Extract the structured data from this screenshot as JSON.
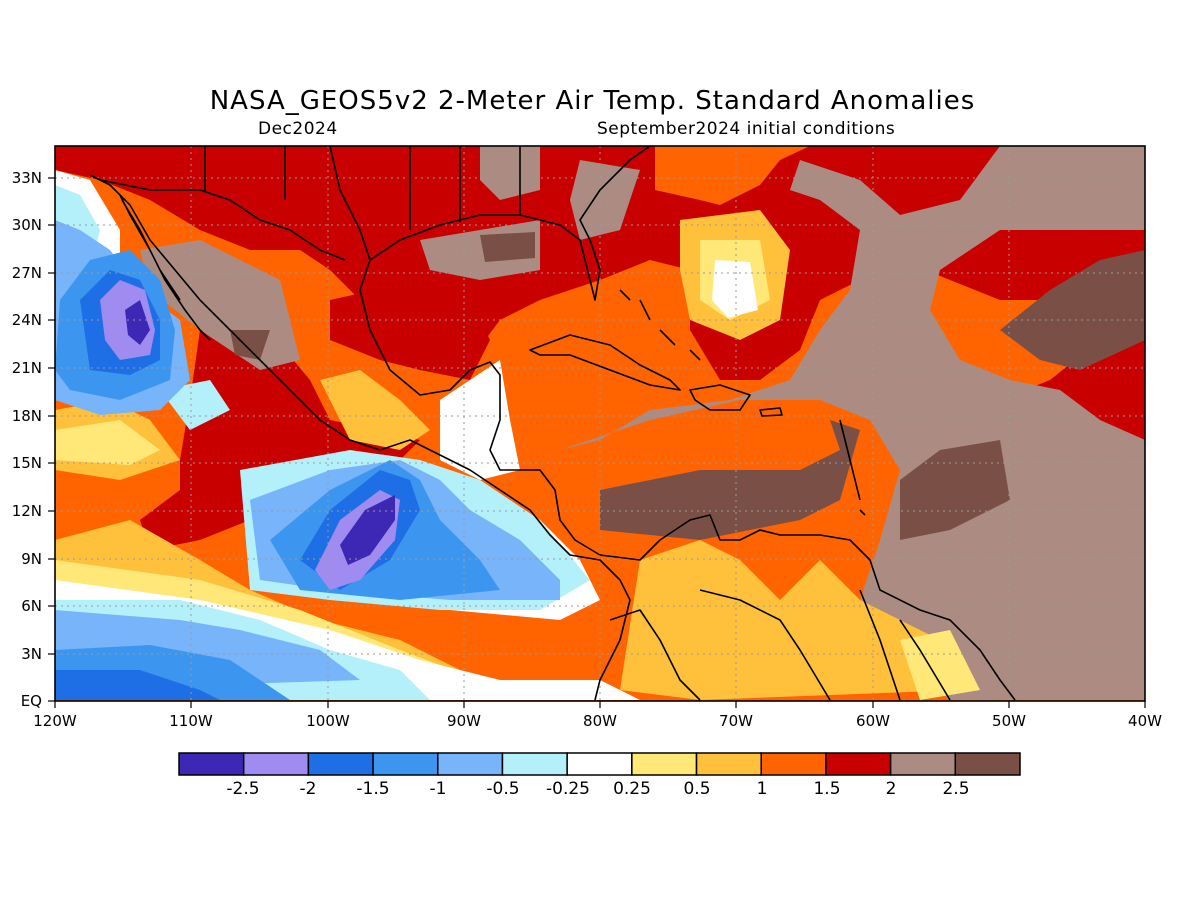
{
  "title": "NASA_GEOS5v2 2-Meter Air Temp. Standard Anomalies",
  "subtitle_left": "Dec2024",
  "subtitle_right": "September2024 initial conditions",
  "map": {
    "lon_range": [
      -120,
      -40
    ],
    "lat_range": [
      0,
      35
    ],
    "lon_ticks": [
      {
        "value": -120,
        "label": "120W"
      },
      {
        "value": -110,
        "label": "110W"
      },
      {
        "value": -100,
        "label": "100W"
      },
      {
        "value": -90,
        "label": "90W"
      },
      {
        "value": -80,
        "label": "80W"
      },
      {
        "value": -70,
        "label": "70W"
      },
      {
        "value": -60,
        "label": "60W"
      },
      {
        "value": -50,
        "label": "50W"
      },
      {
        "value": -40,
        "label": "40W"
      }
    ],
    "lat_ticks": [
      {
        "value": 0,
        "label": "EQ"
      },
      {
        "value": 3,
        "label": "3N"
      },
      {
        "value": 6,
        "label": "6N"
      },
      {
        "value": 9,
        "label": "9N"
      },
      {
        "value": 12,
        "label": "12N"
      },
      {
        "value": 15,
        "label": "15N"
      },
      {
        "value": 18,
        "label": "18N"
      },
      {
        "value": 21,
        "label": "21N"
      },
      {
        "value": 24,
        "label": "24N"
      },
      {
        "value": 27,
        "label": "27N"
      },
      {
        "value": 30,
        "label": "30N"
      },
      {
        "value": 33,
        "label": "33N"
      }
    ],
    "grid": true
  },
  "colorbar": {
    "colors": [
      "#3c28b4",
      "#a08cf0",
      "#1e6ee6",
      "#3c96f0",
      "#78b4fa",
      "#b4f0fa",
      "#ffffff",
      "#ffe878",
      "#ffc03c",
      "#ff6400",
      "#c80000",
      "#ac8c82",
      "#7a5046"
    ],
    "labels": [
      "-2.5",
      "-2",
      "-1.5",
      "-1",
      "-0.5",
      "-0.25",
      "0.25",
      "0.5",
      "1",
      "1.5",
      "2",
      "2.5"
    ]
  },
  "chart_data": {
    "type": "heatmap",
    "title": "NASA_GEOS5v2 2-Meter Air Temp. Standard Anomalies",
    "subtitle": [
      "Dec2024",
      "September2024 initial conditions"
    ],
    "x_range": [
      -120,
      -40
    ],
    "y_range": [
      0,
      35
    ],
    "levels": [
      -2.5,
      -2,
      -1.5,
      -1,
      -0.5,
      -0.25,
      0.25,
      0.5,
      1,
      1.5,
      2,
      2.5
    ],
    "grid": true
  }
}
